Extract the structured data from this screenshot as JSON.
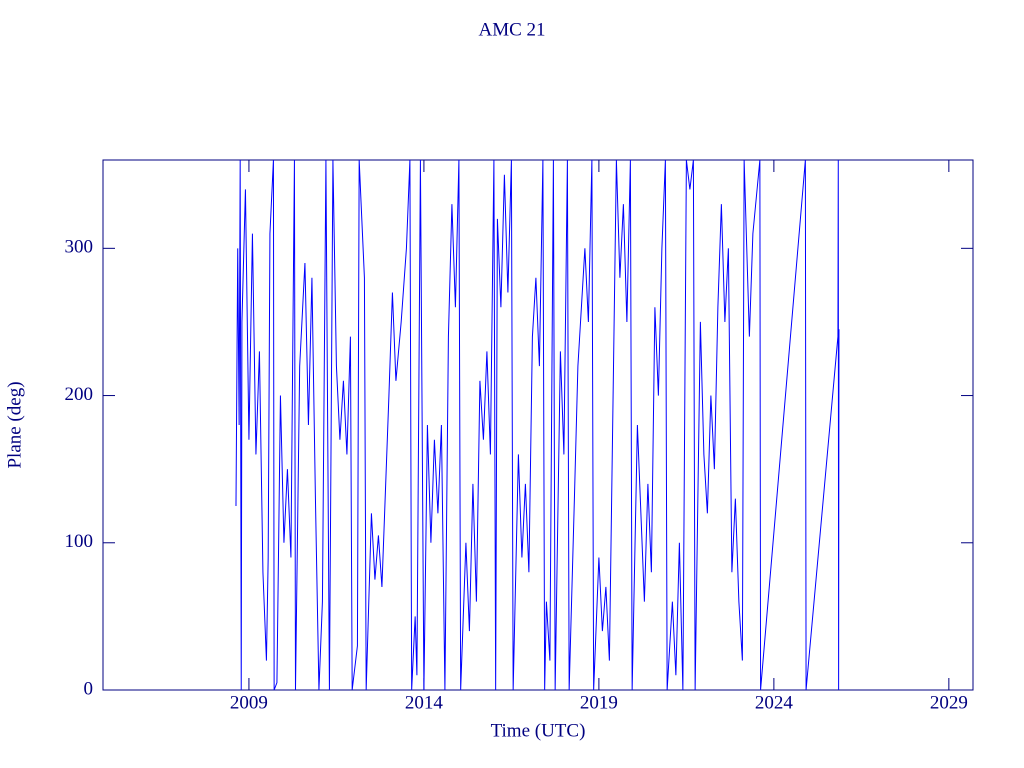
{
  "chart_data": {
    "type": "line",
    "title": "AMC 21",
    "x_label": "Time (UTC)",
    "y_label": "Plane (deg)",
    "xlim": [
      2004.83,
      2029.69
    ],
    "ylim": [
      0,
      360
    ],
    "xticks": [
      2009,
      2014,
      2019,
      2024,
      2029
    ],
    "yticks": [
      0,
      100,
      200,
      300
    ],
    "x": [
      2008.63,
      2008.68,
      2008.72,
      2008.75,
      2008.78,
      2008.8,
      2008.9,
      2009.0,
      2009.1,
      2009.2,
      2009.3,
      2009.4,
      2009.5,
      2009.55,
      2009.6,
      2009.7,
      2009.72,
      2009.8,
      2009.9,
      2010.0,
      2010.1,
      2010.2,
      2010.3,
      2010.33,
      2010.45,
      2010.6,
      2010.7,
      2010.8,
      2010.9,
      2011.0,
      2011.1,
      2011.2,
      2011.3,
      2011.4,
      2011.5,
      2011.6,
      2011.7,
      2011.8,
      2011.9,
      2011.95,
      2012.1,
      2012.15,
      2012.3,
      2012.35,
      2012.5,
      2012.6,
      2012.7,
      2012.8,
      2013.0,
      2013.1,
      2013.2,
      2013.35,
      2013.5,
      2013.6,
      2013.65,
      2013.75,
      2013.8,
      2013.9,
      2014.0,
      2014.1,
      2014.2,
      2014.3,
      2014.4,
      2014.5,
      2014.6,
      2014.7,
      2014.8,
      2014.9,
      2015.0,
      2015.05,
      2015.2,
      2015.3,
      2015.4,
      2015.5,
      2015.6,
      2015.7,
      2015.8,
      2015.9,
      2016.0,
      2016.05,
      2016.1,
      2016.2,
      2016.3,
      2016.4,
      2016.5,
      2016.55,
      2016.7,
      2016.8,
      2016.9,
      2017.0,
      2017.1,
      2017.2,
      2017.3,
      2017.4,
      2017.45,
      2017.5,
      2017.6,
      2017.7,
      2017.75,
      2017.9,
      2018.0,
      2018.1,
      2018.15,
      2018.3,
      2018.4,
      2018.5,
      2018.6,
      2018.7,
      2018.8,
      2018.85,
      2019.0,
      2019.1,
      2019.2,
      2019.3,
      2019.5,
      2019.6,
      2019.7,
      2019.8,
      2019.9,
      2019.95,
      2020.1,
      2020.2,
      2020.3,
      2020.4,
      2020.5,
      2020.6,
      2020.7,
      2020.8,
      2020.9,
      2020.95,
      2021.1,
      2021.2,
      2021.3,
      2021.4,
      2021.5,
      2021.6,
      2021.7,
      2021.75,
      2021.9,
      2022.0,
      2022.1,
      2022.2,
      2022.3,
      2022.4,
      2022.5,
      2022.6,
      2022.7,
      2022.8,
      2022.9,
      2023.0,
      2023.1,
      2023.15,
      2023.3,
      2023.4,
      2023.6,
      2023.62,
      2024.9,
      2024.92,
      2025.83,
      2025.84,
      2025.85,
      2025.86
    ],
    "series": [
      {
        "color": "#0000ff",
        "values": [
          125,
          300,
          180,
          360,
          0,
          250,
          340,
          170,
          310,
          160,
          230,
          80,
          20,
          90,
          310,
          360,
          0,
          5,
          200,
          100,
          150,
          90,
          360,
          0,
          220,
          290,
          180,
          280,
          130,
          0,
          60,
          360,
          0,
          360,
          220,
          170,
          210,
          160,
          240,
          0,
          30,
          360,
          280,
          0,
          120,
          75,
          105,
          70,
          200,
          270,
          210,
          250,
          300,
          360,
          0,
          50,
          10,
          360,
          0,
          180,
          100,
          170,
          120,
          180,
          0,
          240,
          330,
          260,
          360,
          0,
          100,
          40,
          140,
          60,
          210,
          170,
          230,
          160,
          360,
          0,
          320,
          260,
          350,
          270,
          360,
          0,
          160,
          90,
          140,
          80,
          240,
          280,
          220,
          360,
          0,
          60,
          20,
          360,
          0,
          230,
          160,
          360,
          0,
          130,
          220,
          260,
          300,
          250,
          360,
          0,
          90,
          40,
          70,
          20,
          360,
          280,
          330,
          250,
          360,
          0,
          180,
          120,
          60,
          140,
          80,
          260,
          200,
          300,
          360,
          0,
          60,
          10,
          100,
          0,
          360,
          340,
          360,
          0,
          250,
          160,
          120,
          200,
          150,
          260,
          330,
          250,
          300,
          80,
          130,
          60,
          20,
          360,
          240,
          310,
          360,
          0,
          360,
          0,
          240,
          360,
          0,
          245
        ]
      }
    ],
    "axis_color": "#000080"
  }
}
